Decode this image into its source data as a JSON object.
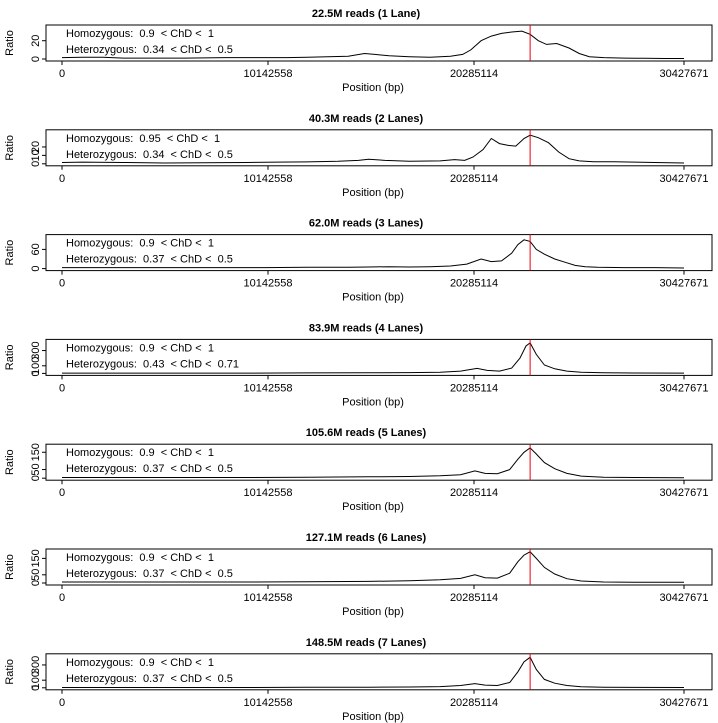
{
  "chart_data": [
    {
      "type": "line",
      "title": "22.5M reads (1 Lane)",
      "xlabel": "Position (bp)",
      "ylabel": "Ratio",
      "xlim": [
        0,
        30427671
      ],
      "x_ticks": [
        "0",
        "10142558",
        "20285114",
        "30427671"
      ],
      "ylim": [
        0,
        35
      ],
      "y_ticks": [
        "0",
        "20"
      ],
      "y_tick_values": [
        0,
        20
      ],
      "marker_x": 22900000,
      "annotations": [
        "Homozygous:  0.9  < ChD <  1",
        "Heterozygous:  0.34  < ChD <  0.5"
      ],
      "grid": false,
      "x": [
        0,
        1000000,
        2000000,
        3000000,
        4000000,
        5000000,
        6000000,
        7000000,
        8000000,
        9000000,
        10000000,
        11000000,
        12000000,
        13000000,
        14000000,
        14800000,
        15300000,
        16000000,
        17000000,
        18000000,
        19000000,
        19600000,
        20000000,
        20500000,
        21000000,
        21500000,
        22000000,
        22500000,
        22900000,
        23300000,
        23700000,
        24200000,
        24800000,
        25300000,
        25800000,
        26500000,
        27500000,
        28500000,
        29500000,
        30427671
      ],
      "y": [
        1.5,
        2.0,
        2.0,
        1.0,
        1.0,
        1.0,
        1.0,
        1.2,
        1.5,
        1.5,
        1.5,
        1.5,
        2.0,
        2.5,
        3.0,
        6.0,
        5.0,
        3.5,
        2.5,
        2.0,
        3.0,
        5.0,
        10.0,
        20.0,
        25.0,
        28.0,
        29.5,
        30.5,
        27.0,
        20.0,
        16.0,
        17.0,
        12.0,
        6.0,
        2.5,
        1.5,
        1.0,
        0.8,
        0.6,
        0.5
      ]
    },
    {
      "type": "line",
      "title": "40.3M reads (2 Lanes)",
      "xlabel": "Position (bp)",
      "ylabel": "Ratio",
      "xlim": [
        0,
        30427671
      ],
      "x_ticks": [
        "0",
        "10142558",
        "20285114",
        "30427671"
      ],
      "ylim": [
        0,
        38
      ],
      "y_ticks": [
        "0",
        "10",
        "20"
      ],
      "y_tick_values": [
        0,
        10,
        20
      ],
      "marker_x": 22900000,
      "annotations": [
        "Homozygous:  0.95  < ChD <  1",
        "Heterozygous:  0.34  < ChD <  0.5"
      ],
      "grid": false,
      "x": [
        0,
        1000000,
        3000000,
        5000000,
        7000000,
        9000000,
        10500000,
        12000000,
        13500000,
        14500000,
        15000000,
        15800000,
        17000000,
        18500000,
        19200000,
        19700000,
        20100000,
        20600000,
        21000000,
        21400000,
        21800000,
        22200000,
        22600000,
        22900000,
        23300000,
        23800000,
        24300000,
        24800000,
        25300000,
        26000000,
        27000000,
        28000000,
        29000000,
        30427671
      ],
      "y": [
        1.5,
        2.0,
        1.5,
        1.0,
        1.2,
        1.5,
        2.0,
        2.2,
        3.0,
        4.0,
        5.5,
        4.0,
        3.0,
        3.5,
        5.0,
        4.0,
        8.0,
        17.0,
        30.0,
        24.0,
        22.0,
        21.0,
        30.0,
        34.0,
        31.0,
        25.0,
        14.0,
        6.0,
        3.5,
        2.5,
        2.5,
        2.0,
        1.5,
        1.0
      ]
    },
    {
      "type": "line",
      "title": "62.0M reads (3 Lanes)",
      "xlabel": "Position (bp)",
      "ylabel": "Ratio",
      "xlim": [
        0,
        30427671
      ],
      "x_ticks": [
        "0",
        "10142558",
        "20285114",
        "30427671"
      ],
      "ylim": [
        0,
        100
      ],
      "y_ticks": [
        "0",
        "60"
      ],
      "y_tick_values": [
        0,
        60
      ],
      "marker_x": 22900000,
      "annotations": [
        "Homozygous:  0.9  < ChD <  1",
        "Heterozygous:  0.37  < ChD <  0.5"
      ],
      "grid": false,
      "x": [
        0,
        2000000,
        4000000,
        6000000,
        8000000,
        10000000,
        12000000,
        14000000,
        15000000,
        16000000,
        17000000,
        18000000,
        19000000,
        19800000,
        20500000,
        21000000,
        21500000,
        22000000,
        22300000,
        22600000,
        22900000,
        23200000,
        23600000,
        24100000,
        24600000,
        25100000,
        25600000,
        26200000,
        27500000,
        29000000,
        30427671
      ],
      "y": [
        3,
        3,
        3,
        3,
        3,
        3,
        4,
        4,
        5,
        6,
        5,
        6,
        8,
        14,
        30,
        22,
        24,
        48,
        75,
        90,
        85,
        60,
        45,
        30,
        20,
        10,
        6,
        4,
        3,
        3,
        2
      ]
    },
    {
      "type": "line",
      "title": "83.9M reads (4 Lanes)",
      "xlabel": "Position (bp)",
      "ylabel": "Ratio",
      "xlim": [
        0,
        30427671
      ],
      "x_ticks": [
        "0",
        "10142558",
        "20285114",
        "30427671"
      ],
      "ylim": [
        0,
        420
      ],
      "y_ticks": [
        "0",
        "100",
        "300"
      ],
      "y_tick_values": [
        0,
        100,
        300
      ],
      "marker_x": 22900000,
      "annotations": [
        "Homozygous:  0.9  < ChD <  1",
        "Heterozygous:  0.43  < ChD <  0.71"
      ],
      "grid": false,
      "x": [
        0,
        3000000,
        6000000,
        9000000,
        12000000,
        15000000,
        17000000,
        18500000,
        19500000,
        20300000,
        20800000,
        21400000,
        22000000,
        22400000,
        22700000,
        22900000,
        23200000,
        23600000,
        24100000,
        24700000,
        25400000,
        26500000,
        28000000,
        30427671
      ],
      "y": [
        4,
        4,
        4,
        4,
        6,
        8,
        10,
        16,
        30,
        65,
        40,
        30,
        70,
        200,
        360,
        400,
        250,
        110,
        60,
        30,
        15,
        8,
        5,
        4
      ]
    },
    {
      "type": "line",
      "title": "105.6M reads (5 Lanes)",
      "xlabel": "Position (bp)",
      "ylabel": "Ratio",
      "xlim": [
        0,
        30427671
      ],
      "x_ticks": [
        "0",
        "10142558",
        "20285114",
        "30427671"
      ],
      "ylim": [
        0,
        185
      ],
      "y_ticks": [
        "0",
        "50",
        "150"
      ],
      "y_tick_values": [
        0,
        50,
        150
      ],
      "marker_x": 22900000,
      "annotations": [
        "Homozygous:  0.9  < ChD <  1",
        "Heterozygous:  0.37  < ChD <  0.5"
      ],
      "grid": false,
      "x": [
        0,
        3000000,
        6000000,
        9000000,
        12000000,
        15000000,
        17000000,
        18500000,
        19500000,
        20200000,
        20700000,
        21300000,
        21900000,
        22300000,
        22600000,
        22900000,
        23200000,
        23600000,
        24100000,
        24700000,
        25400000,
        26500000,
        28000000,
        30427671
      ],
      "y": [
        4,
        4,
        4,
        4,
        6,
        8,
        10,
        14,
        20,
        42,
        28,
        26,
        50,
        110,
        150,
        175,
        140,
        90,
        55,
        28,
        12,
        6,
        4,
        3
      ]
    },
    {
      "type": "line",
      "title": "127.1M reads (6 Lanes)",
      "xlabel": "Position (bp)",
      "ylabel": "Ratio",
      "xlim": [
        0,
        30427671
      ],
      "x_ticks": [
        "0",
        "10142558",
        "20285114",
        "30427671"
      ],
      "ylim": [
        0,
        195
      ],
      "y_ticks": [
        "0",
        "50",
        "150"
      ],
      "y_tick_values": [
        0,
        50,
        150
      ],
      "marker_x": 22900000,
      "annotations": [
        "Homozygous:  0.9  < ChD <  1",
        "Heterozygous:  0.37  < ChD <  0.5"
      ],
      "grid": false,
      "x": [
        0,
        3000000,
        6000000,
        9000000,
        12000000,
        15000000,
        17000000,
        18500000,
        19500000,
        20200000,
        20700000,
        21300000,
        21900000,
        22300000,
        22600000,
        22900000,
        23200000,
        23600000,
        24100000,
        24700000,
        25400000,
        26500000,
        28000000,
        30427671
      ],
      "y": [
        6,
        6,
        6,
        6,
        8,
        10,
        14,
        20,
        28,
        50,
        32,
        30,
        60,
        130,
        170,
        190,
        150,
        95,
        55,
        26,
        12,
        6,
        5,
        4
      ]
    },
    {
      "type": "line",
      "title": "148.5M reads (7 Lanes)",
      "xlabel": "Position (bp)",
      "ylabel": "Ratio",
      "xlim": [
        0,
        30427671
      ],
      "x_ticks": [
        "0",
        "10142558",
        "20285114",
        "30427671"
      ],
      "ylim": [
        0,
        420
      ],
      "y_ticks": [
        "0",
        "100",
        "300"
      ],
      "y_tick_values": [
        0,
        100,
        300
      ],
      "marker_x": 22900000,
      "annotations": [
        "Homozygous:  0.9  < ChD <  1",
        "Heterozygous:  0.37  < ChD <  0.5"
      ],
      "grid": false,
      "x": [
        0,
        3000000,
        6000000,
        9000000,
        12000000,
        15000000,
        17000000,
        18500000,
        19500000,
        20200000,
        20700000,
        21300000,
        21900000,
        22300000,
        22600000,
        22900000,
        23200000,
        23600000,
        24100000,
        24700000,
        25400000,
        26500000,
        28000000,
        30427671
      ],
      "y": [
        4,
        4,
        4,
        4,
        6,
        8,
        10,
        16,
        30,
        55,
        35,
        30,
        70,
        210,
        340,
        400,
        240,
        110,
        60,
        30,
        15,
        8,
        5,
        4
      ]
    }
  ],
  "colors": {
    "line": "#000000",
    "marker": "#e8000b"
  }
}
